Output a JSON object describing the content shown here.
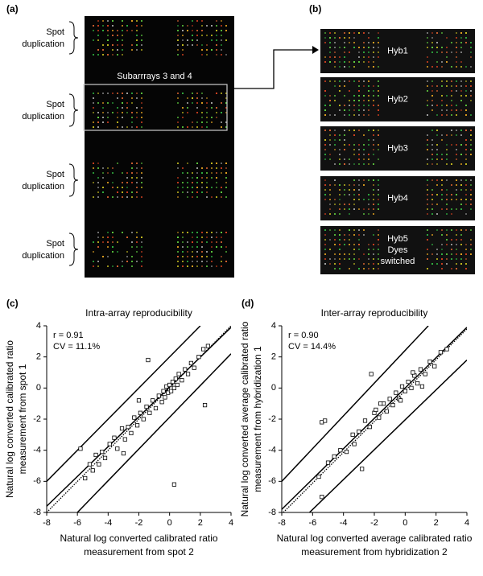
{
  "panels": {
    "a": {
      "label": "(a)",
      "subarray_label": "Subarrrays 3 and 4",
      "spot_labels": [
        [
          "Spot",
          "duplication"
        ],
        [
          "Spot",
          "duplication"
        ],
        [
          "Spot",
          "duplication"
        ],
        [
          "Spot",
          "duplication"
        ]
      ]
    },
    "b": {
      "label": "(b)",
      "hybs": [
        [
          "Hyb1"
        ],
        [
          "Hyb2"
        ],
        [
          "Hyb3"
        ],
        [
          "Hyb4"
        ],
        [
          "Hyb5",
          "Dyes",
          "switched"
        ]
      ]
    }
  },
  "chart_data": [
    {
      "type": "scatter",
      "panel": "(c)",
      "title": "Intra-array reproducibility",
      "x_label": [
        "Natural log converted calibrated ratio",
        "measurement from spot 2"
      ],
      "y_label": [
        "Natural log converted calibrated ratio",
        "measurement from spot 1"
      ],
      "annotations": [
        "r = 0.91",
        "CV = 11.1%"
      ],
      "xlim": [
        -8,
        4
      ],
      "ylim": [
        -8,
        4
      ],
      "xticks": [
        -8,
        -6,
        -4,
        -2,
        0,
        2,
        4
      ],
      "yticks": [
        -8,
        -6,
        -4,
        -2,
        0,
        2,
        4
      ],
      "grid": false,
      "color": "#000000",
      "marker": "square",
      "x": [
        -5.5,
        -5.2,
        -5.0,
        -4.8,
        -4.6,
        -4.4,
        -4.2,
        -3.9,
        -3.6,
        -3.4,
        -3.1,
        -2.9,
        -2.7,
        -2.5,
        -2.3,
        -2.1,
        -1.9,
        -1.7,
        -1.5,
        -1.3,
        -1.1,
        -0.9,
        -0.7,
        -0.5,
        -0.4,
        -0.3,
        -0.2,
        -0.1,
        0,
        0.1,
        0.2,
        0.3,
        0.4,
        0.5,
        0.6,
        0.8,
        1.0,
        1.2,
        1.4,
        1.6,
        1.9,
        2.2,
        2.5,
        0.3,
        2.3,
        -1.4,
        -5.8,
        -3.0,
        -2.0
      ],
      "y": [
        -5.8,
        -4.9,
        -5.3,
        -4.3,
        -4.9,
        -4.1,
        -4.5,
        -3.6,
        -3.2,
        -3.9,
        -2.6,
        -3.3,
        -2.5,
        -2.9,
        -1.9,
        -2.4,
        -1.6,
        -2.0,
        -1.2,
        -1.6,
        -0.8,
        -1.3,
        -0.5,
        -0.9,
        -0.2,
        -0.6,
        0.1,
        -0.3,
        0.2,
        -0.2,
        0.4,
        0.0,
        0.6,
        0.2,
        0.9,
        0.5,
        1.2,
        0.9,
        1.6,
        1.3,
        2.0,
        2.5,
        2.7,
        -6.2,
        -1.1,
        1.8,
        -3.9,
        -4.2,
        -0.8
      ],
      "lines": [
        {
          "style": "solid",
          "x": [
            -8,
            2
          ],
          "y": [
            -6,
            4
          ]
        },
        {
          "style": "solid",
          "x": [
            -8,
            4
          ],
          "y": [
            -7.6,
            3.9
          ]
        },
        {
          "style": "dotted",
          "x": [
            -8,
            4
          ],
          "y": [
            -8,
            4
          ]
        },
        {
          "style": "solid",
          "x": [
            -6,
            4
          ],
          "y": [
            -8,
            2.2
          ]
        }
      ]
    },
    {
      "type": "scatter",
      "panel": "(d)",
      "title": "Inter-array reproducibility",
      "x_label": [
        "Natural log converted average calibrated ratio",
        "measurement from hybridization 2"
      ],
      "y_label": [
        "Natural log converted average calibrated ratio",
        "measurement from hybridization 1"
      ],
      "annotations": [
        "r = 0.90",
        "CV = 14.4%"
      ],
      "xlim": [
        -8,
        4
      ],
      "ylim": [
        -8,
        4
      ],
      "xticks": [
        -8,
        -6,
        -4,
        -2,
        0,
        2,
        4
      ],
      "yticks": [
        -8,
        -6,
        -4,
        -2,
        0,
        2,
        4
      ],
      "grid": false,
      "color": "#000000",
      "marker": "square",
      "x": [
        -5.6,
        -5.0,
        -4.6,
        -4.2,
        -3.8,
        -3.4,
        -3.0,
        -2.6,
        -2.3,
        -2.0,
        -1.7,
        -1.4,
        -1.2,
        -1.0,
        -0.8,
        -0.6,
        -0.4,
        -0.2,
        0,
        0.2,
        0.4,
        0.6,
        0.8,
        1.0,
        1.3,
        1.6,
        1.9,
        2.3,
        2.7,
        -5.4,
        -5.2,
        -3.3,
        -2.8,
        -1.6,
        -5.4,
        -2.2,
        -0.3,
        0.5,
        1.1,
        -1.9
      ],
      "y": [
        -5.7,
        -4.8,
        -4.4,
        -4.0,
        -4.1,
        -3.0,
        -2.8,
        -2.1,
        -2.5,
        -1.6,
        -1.9,
        -1.0,
        -1.5,
        -0.7,
        -1.1,
        -0.3,
        -0.7,
        0.1,
        -0.2,
        0.4,
        0.0,
        0.8,
        0.3,
        1.2,
        0.9,
        1.7,
        1.4,
        2.3,
        2.5,
        -2.2,
        -2.1,
        -3.6,
        -5.2,
        -1.0,
        -7.0,
        0.9,
        -0.8,
        1.0,
        0.1,
        -1.4
      ],
      "lines": [
        {
          "style": "solid",
          "x": [
            -8,
            1.5
          ],
          "y": [
            -6,
            4
          ]
        },
        {
          "style": "solid",
          "x": [
            -8,
            4
          ],
          "y": [
            -7.8,
            3.9
          ]
        },
        {
          "style": "dotted",
          "x": [
            -7.9,
            4
          ],
          "y": [
            -8,
            3.8
          ]
        },
        {
          "style": "solid",
          "x": [
            -6.2,
            4
          ],
          "y": [
            -8,
            1.8
          ]
        }
      ]
    }
  ]
}
